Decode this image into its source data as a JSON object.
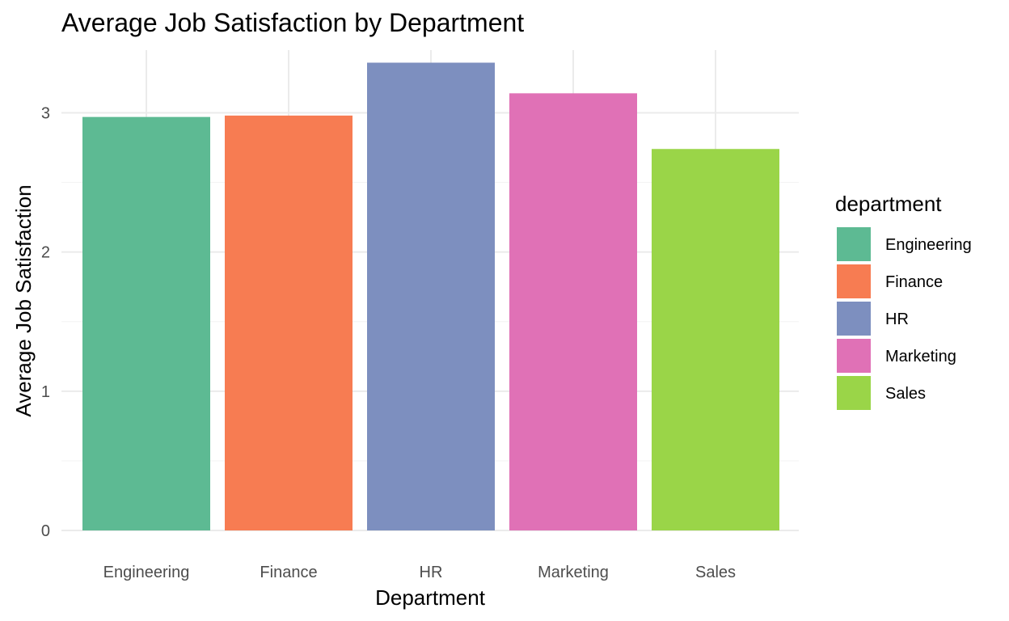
{
  "chart_data": {
    "type": "bar",
    "title": "Average Job Satisfaction by Department",
    "xlabel": "Department",
    "ylabel": "Average Job Satisfaction",
    "categories": [
      "Engineering",
      "Finance",
      "HR",
      "Marketing",
      "Sales"
    ],
    "values": [
      2.97,
      2.98,
      3.36,
      3.14,
      2.74
    ],
    "colors": [
      "#5dba93",
      "#f77c52",
      "#7d8fbf",
      "#e071b6",
      "#9ad548"
    ],
    "ylim": [
      0,
      3.45
    ],
    "yticks": [
      0,
      1,
      2,
      3
    ],
    "grid": true,
    "legend": {
      "title": "department",
      "placement": "right",
      "entries": [
        "Engineering",
        "Finance",
        "HR",
        "Marketing",
        "Sales"
      ]
    }
  }
}
